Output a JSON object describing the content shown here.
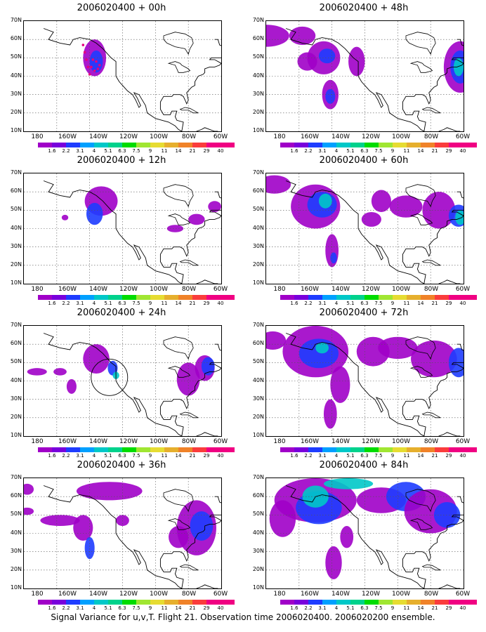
{
  "panels": [
    {
      "title": "2006020400 + 00h",
      "hour": 0
    },
    {
      "title": "2006020400 + 48h",
      "hour": 48
    },
    {
      "title": "2006020400 + 12h",
      "hour": 12
    },
    {
      "title": "2006020400 + 60h",
      "hour": 60
    },
    {
      "title": "2006020400 + 24h",
      "hour": 24
    },
    {
      "title": "2006020400 + 72h",
      "hour": 72
    },
    {
      "title": "2006020400 + 36h",
      "hour": 36
    },
    {
      "title": "2006020400 + 84h",
      "hour": 84
    }
  ],
  "lat_labels": [
    "70N",
    "60N",
    "50N",
    "40N",
    "30N",
    "20N",
    "10N"
  ],
  "lon_labels": [
    "180",
    "160W",
    "140W",
    "120W",
    "100W",
    "80W",
    "60W"
  ],
  "colorbar": {
    "labels": [
      "1.6",
      "2.2",
      "3.1",
      "4",
      "5.1",
      "6.3",
      "7.5",
      "9",
      "11",
      "14",
      "21",
      "29",
      "40"
    ],
    "colors": [
      "#a000c8",
      "#7800dc",
      "#1e3cff",
      "#00a0ff",
      "#00c8c8",
      "#00d28c",
      "#00dc00",
      "#a0e632",
      "#e6dc32",
      "#e6af2d",
      "#f08228",
      "#fa3c3c",
      "#f00082"
    ]
  },
  "caption": "Signal Variance for u,v,T. Flight 21. Observation time 2006020400. 2006020200 ensemble."
}
